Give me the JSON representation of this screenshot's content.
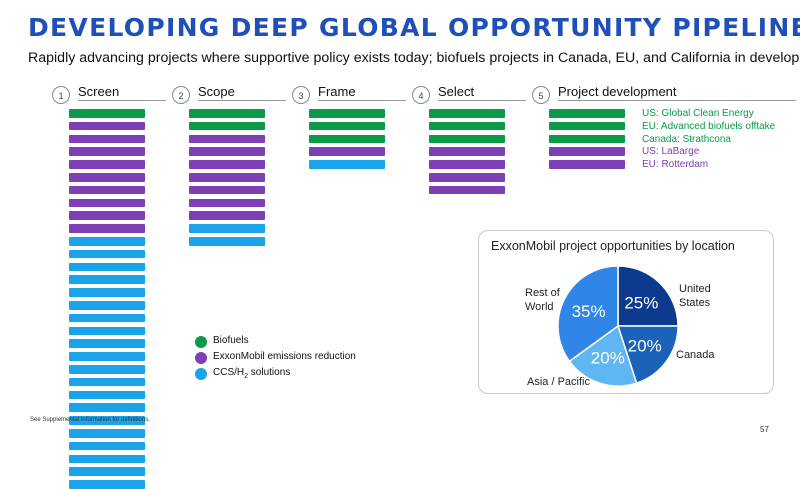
{
  "header": {
    "title": "DEVELOPING DEEP GLOBAL OPPORTUNITY PIPELINE",
    "subtitle": "Rapidly advancing projects where supportive policy exists today; biofuels projects in Canada, EU, and California in development"
  },
  "colors": {
    "biofuels": "#0a9a48",
    "emissions": "#7e3fb5",
    "ccs": "#1aa3e8",
    "title": "#1f4fb8"
  },
  "stages": [
    {
      "num": "1",
      "label": "Screen",
      "bars": [
        "biofuels",
        "emissions",
        "emissions",
        "emissions",
        "emissions",
        "emissions",
        "emissions",
        "emissions",
        "emissions",
        "emissions",
        "ccs",
        "ccs",
        "ccs",
        "ccs",
        "ccs",
        "ccs",
        "ccs",
        "ccs",
        "ccs",
        "ccs",
        "ccs",
        "ccs",
        "ccs",
        "ccs",
        "ccs",
        "ccs",
        "ccs",
        "ccs",
        "ccs",
        "ccs"
      ]
    },
    {
      "num": "2",
      "label": "Scope",
      "bars": [
        "biofuels",
        "biofuels",
        "emissions",
        "emissions",
        "emissions",
        "emissions",
        "emissions",
        "emissions",
        "emissions",
        "ccs",
        "ccs"
      ]
    },
    {
      "num": "3",
      "label": "Frame",
      "bars": [
        "biofuels",
        "biofuels",
        "biofuels",
        "emissions",
        "ccs"
      ]
    },
    {
      "num": "4",
      "label": "Select",
      "bars": [
        "biofuels",
        "biofuels",
        "biofuels",
        "emissions",
        "emissions",
        "emissions",
        "emissions"
      ]
    },
    {
      "num": "5",
      "label": "Project development",
      "bars": [
        "biofuels",
        "biofuels",
        "biofuels",
        "emissions",
        "emissions"
      ]
    }
  ],
  "projects": [
    {
      "label": "US: Global Clean Energy",
      "category": "biofuels"
    },
    {
      "label": "EU: Advanced biofuels offtake",
      "category": "biofuels"
    },
    {
      "label": "Canada: Strathcona",
      "category": "biofuels"
    },
    {
      "label": "US: LaBarge",
      "category": "emissions"
    },
    {
      "label": "EU: Rotterdam",
      "category": "emissions"
    }
  ],
  "legend": [
    {
      "label": "Biofuels",
      "category": "biofuels"
    },
    {
      "label": "ExxonMobil emissions reduction",
      "category": "emissions"
    },
    {
      "label": "CCS/H",
      "sub": "2",
      "suffix": " solutions",
      "category": "ccs"
    }
  ],
  "chart_data": {
    "type": "pie",
    "title": "ExxonMobil project opportunities by location",
    "slices": [
      {
        "name": "United States",
        "lines": [
          "United",
          "States"
        ],
        "value": 25,
        "label": "25%",
        "color": "#0d3a8c"
      },
      {
        "name": "Canada",
        "lines": [
          "Canada"
        ],
        "value": 20,
        "label": "20%",
        "color": "#1a63b8"
      },
      {
        "name": "Asia / Pacific",
        "lines": [
          "Asia / Pacific"
        ],
        "value": 20,
        "label": "20%",
        "color": "#5fb6f2"
      },
      {
        "name": "Rest of World",
        "lines": [
          "Rest of",
          "World"
        ],
        "value": 35,
        "label": "35%",
        "color": "#2f86e6"
      }
    ]
  },
  "footer": {
    "note": "See Supplemental Information for definitions.",
    "page": "57"
  }
}
